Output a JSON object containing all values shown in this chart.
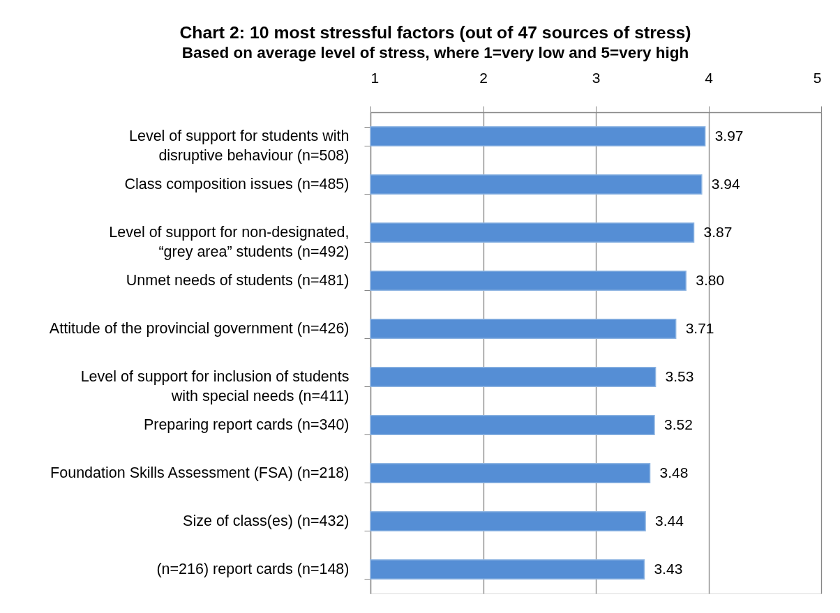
{
  "chart_data": {
    "type": "bar",
    "orientation": "horizontal",
    "title": "Chart 2: 10 most stressful factors (out of 47 sources of stress)",
    "subtitle": "Based on average level of stress, where 1=very low and 5=very high",
    "categories": [
      "Level of support for students with\ndisruptive behaviour (n=508)",
      "Class composition issues (n=485)",
      "Level of support for non-designated,\n“grey area” students (n=492)",
      "Unmet needs of students (n=481)",
      "Attitude of the provincial government (n=426)",
      "Level of support for inclusion of students\nwith special needs (n=411)",
      "Preparing report cards (n=340)",
      "Foundation Skills Assessment (FSA) (n=218)",
      "Size of class(es) (n=432)",
      "(n=216) report cards (n=148)"
    ],
    "values": [
      3.97,
      3.94,
      3.87,
      3.8,
      3.71,
      3.53,
      3.52,
      3.48,
      3.44,
      3.43
    ],
    "value_labels": [
      "3.97",
      "3.94",
      "3.87",
      "3.80",
      "3.71",
      "3.53",
      "3.52",
      "3.48",
      "3.44",
      "3.43"
    ],
    "color": "#558ed5",
    "xlim": [
      1,
      5
    ],
    "xticks": [
      1,
      2,
      3,
      4,
      5
    ],
    "grid": "x"
  }
}
